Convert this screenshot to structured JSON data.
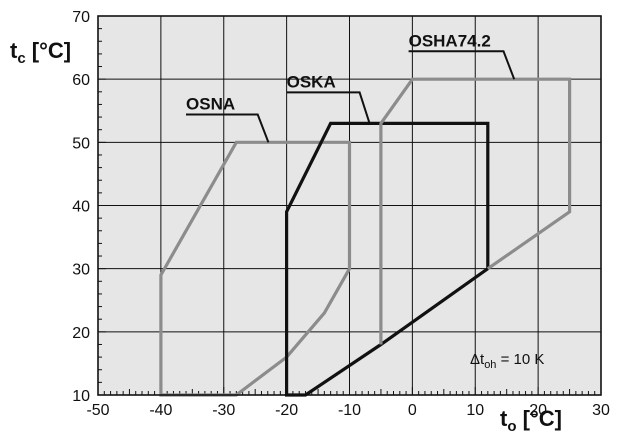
{
  "chart_data": {
    "type": "line",
    "xlabel": "t",
    "xlabel_sub": "o",
    "xlabel_unit": " [°C]",
    "ylabel": "t",
    "ylabel_sub": "c",
    "ylabel_unit": " [°C]",
    "xlim": [
      -50,
      30
    ],
    "ylim": [
      10,
      70
    ],
    "x_ticks": [
      -50,
      -40,
      -30,
      -20,
      -10,
      0,
      10,
      20,
      30
    ],
    "y_ticks": [
      10,
      20,
      30,
      40,
      50,
      60,
      70
    ],
    "grid": true,
    "background": "#e6e6e6",
    "annotation": {
      "delta": "Δt",
      "sub": "oh",
      "rest": " = 10 K"
    },
    "series": [
      {
        "name": "OSNA",
        "color": "#8c8c8c",
        "points": [
          [
            -40,
            10
          ],
          [
            -40,
            29
          ],
          [
            -28,
            50
          ],
          [
            -10,
            50
          ],
          [
            -10,
            30
          ],
          [
            -14,
            23
          ],
          [
            -20,
            16
          ],
          [
            -28,
            10
          ]
        ],
        "closed": true
      },
      {
        "name": "OSKA",
        "color": "#111111",
        "points": [
          [
            -20,
            10
          ],
          [
            -20,
            39
          ],
          [
            -13,
            53
          ],
          [
            12,
            53
          ],
          [
            12,
            30
          ],
          [
            -5,
            18
          ],
          [
            -17,
            10
          ]
        ],
        "closed": true
      },
      {
        "name": "OSHA74.2",
        "color": "#8c8c8c",
        "points": [
          [
            -5,
            18
          ],
          [
            -5,
            53
          ],
          [
            0,
            60
          ],
          [
            25,
            60
          ],
          [
            25,
            39
          ],
          [
            12,
            30
          ]
        ],
        "closed": false
      }
    ],
    "labels": [
      {
        "series": "OSNA",
        "text": "OSNA",
        "x": -36,
        "y": 55.2,
        "lead": [
          [
            -24.6,
            52.3
          ],
          [
            -22.9,
            50
          ]
        ]
      },
      {
        "series": "OSKA",
        "text": "OSKA",
        "x": -20,
        "y": 58.7,
        "lead": [
          [
            -8.4,
            55.8
          ],
          [
            -6.8,
            53
          ]
        ]
      },
      {
        "series": "OSHA74.2",
        "text": "OSHA74.2",
        "x": -0.6,
        "y": 65.2,
        "lead": [
          [
            14.5,
            62.4
          ],
          [
            16.2,
            60
          ]
        ]
      }
    ]
  }
}
